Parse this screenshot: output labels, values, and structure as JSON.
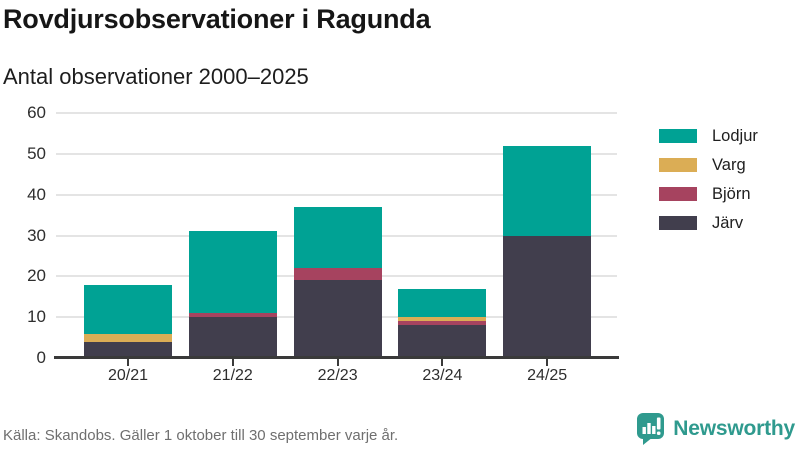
{
  "header": {
    "title": "Rovdjursobservationer i Ragunda",
    "subtitle": "Antal observationer 2000–2025"
  },
  "chart_data": {
    "type": "bar",
    "stacked": true,
    "categories": [
      "20/21",
      "21/22",
      "22/23",
      "23/24",
      "24/25"
    ],
    "series": [
      {
        "name": "Järv",
        "key": "jarv",
        "color": "#413E4D",
        "values": [
          4,
          10,
          19,
          8,
          30
        ]
      },
      {
        "name": "Björn",
        "key": "bjorn",
        "color": "#A6435F",
        "values": [
          0,
          1,
          3,
          1,
          0
        ]
      },
      {
        "name": "Varg",
        "key": "varg",
        "color": "#DBAD55",
        "values": [
          2,
          0,
          0,
          1,
          0
        ]
      },
      {
        "name": "Lodjur",
        "key": "lodjur",
        "color": "#00A294",
        "values": [
          12,
          20,
          15,
          7,
          22
        ]
      }
    ],
    "totals": [
      18,
      31,
      37,
      17,
      52
    ],
    "ylim": [
      0,
      60
    ],
    "yticks": [
      0,
      10,
      20,
      30,
      40,
      50,
      60
    ],
    "legend": [
      "Lodjur",
      "Varg",
      "Björn",
      "Järv"
    ],
    "legend_position": "right",
    "grid": "horizontal",
    "title": "Rovdjursobservationer i Ragunda",
    "subtitle": "Antal observationer 2000–2025",
    "xlabel": "",
    "ylabel": ""
  },
  "footer": {
    "source": "Källa: Skandobs. Gäller 1 oktober till 30 september varje år.",
    "brand": "Newsworthy"
  },
  "colors": {
    "brand": "#2F9A8E",
    "axis": "#3A3A3A",
    "gridline": "#E4E4E4",
    "text_muted": "#6F6F6F"
  }
}
